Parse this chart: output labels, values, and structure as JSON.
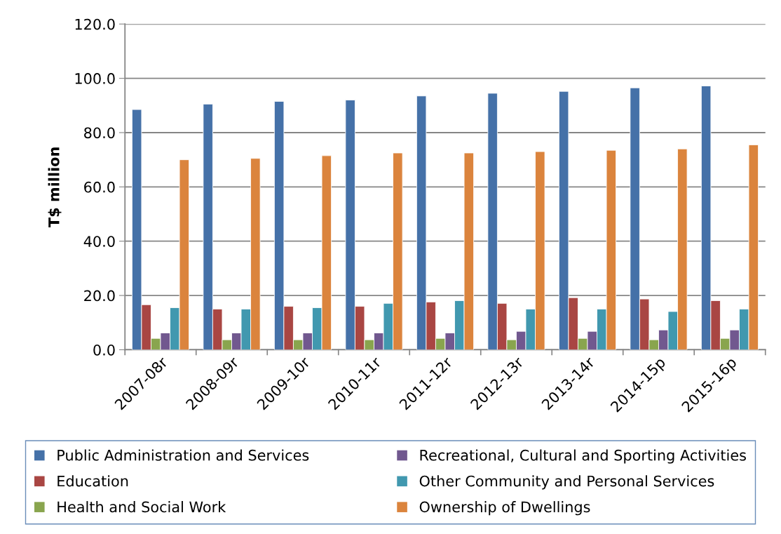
{
  "chart_data": {
    "type": "bar",
    "ylabel": "T$ million",
    "categories": [
      "2007-08r",
      "2008-09r",
      "2009-10r",
      "2010-11r",
      "2011-12r",
      "2012-13r",
      "2013-14r",
      "2014-15p",
      "2015-16p"
    ],
    "series": [
      {
        "name": "Public Administration and Services",
        "color": "#4571a8",
        "values": [
          88.5,
          90.5,
          91.5,
          92.0,
          93.5,
          94.5,
          95.2,
          96.5,
          97.2
        ]
      },
      {
        "name": "Education",
        "color": "#a94643",
        "values": [
          16.6,
          15.0,
          16.0,
          16.0,
          17.6,
          17.1,
          19.2,
          18.7,
          18.1
        ]
      },
      {
        "name": "Health and Social Work",
        "color": "#89a54e",
        "values": [
          4.2,
          3.7,
          3.7,
          3.7,
          4.2,
          3.7,
          4.2,
          3.7,
          4.2
        ]
      },
      {
        "name": "Recreational, Cultural and Sporting Activities",
        "color": "#71588f",
        "values": [
          6.2,
          6.2,
          6.2,
          6.2,
          6.2,
          6.8,
          6.8,
          7.3,
          7.3
        ]
      },
      {
        "name": "Other Community and Personal Services",
        "color": "#4198af",
        "values": [
          15.5,
          15.0,
          15.5,
          17.1,
          18.1,
          15.0,
          15.0,
          14.1,
          15.0
        ]
      },
      {
        "name": "Ownership of Dwellings",
        "color": "#db843d",
        "values": [
          70.0,
          70.5,
          71.5,
          72.5,
          72.5,
          73.0,
          73.5,
          74.0,
          75.5
        ]
      }
    ],
    "ylim": [
      0,
      120
    ],
    "yticks": [
      {
        "value": 0,
        "label": "0.0"
      },
      {
        "value": 20,
        "label": "20.0"
      },
      {
        "value": 40,
        "label": "40.0"
      },
      {
        "value": 60,
        "label": "60.0"
      },
      {
        "value": 80,
        "label": "80.0"
      },
      {
        "value": 100,
        "label": "100.0"
      },
      {
        "value": 120,
        "label": "120.0"
      }
    ],
    "grid": "y",
    "legend": "bottom"
  }
}
